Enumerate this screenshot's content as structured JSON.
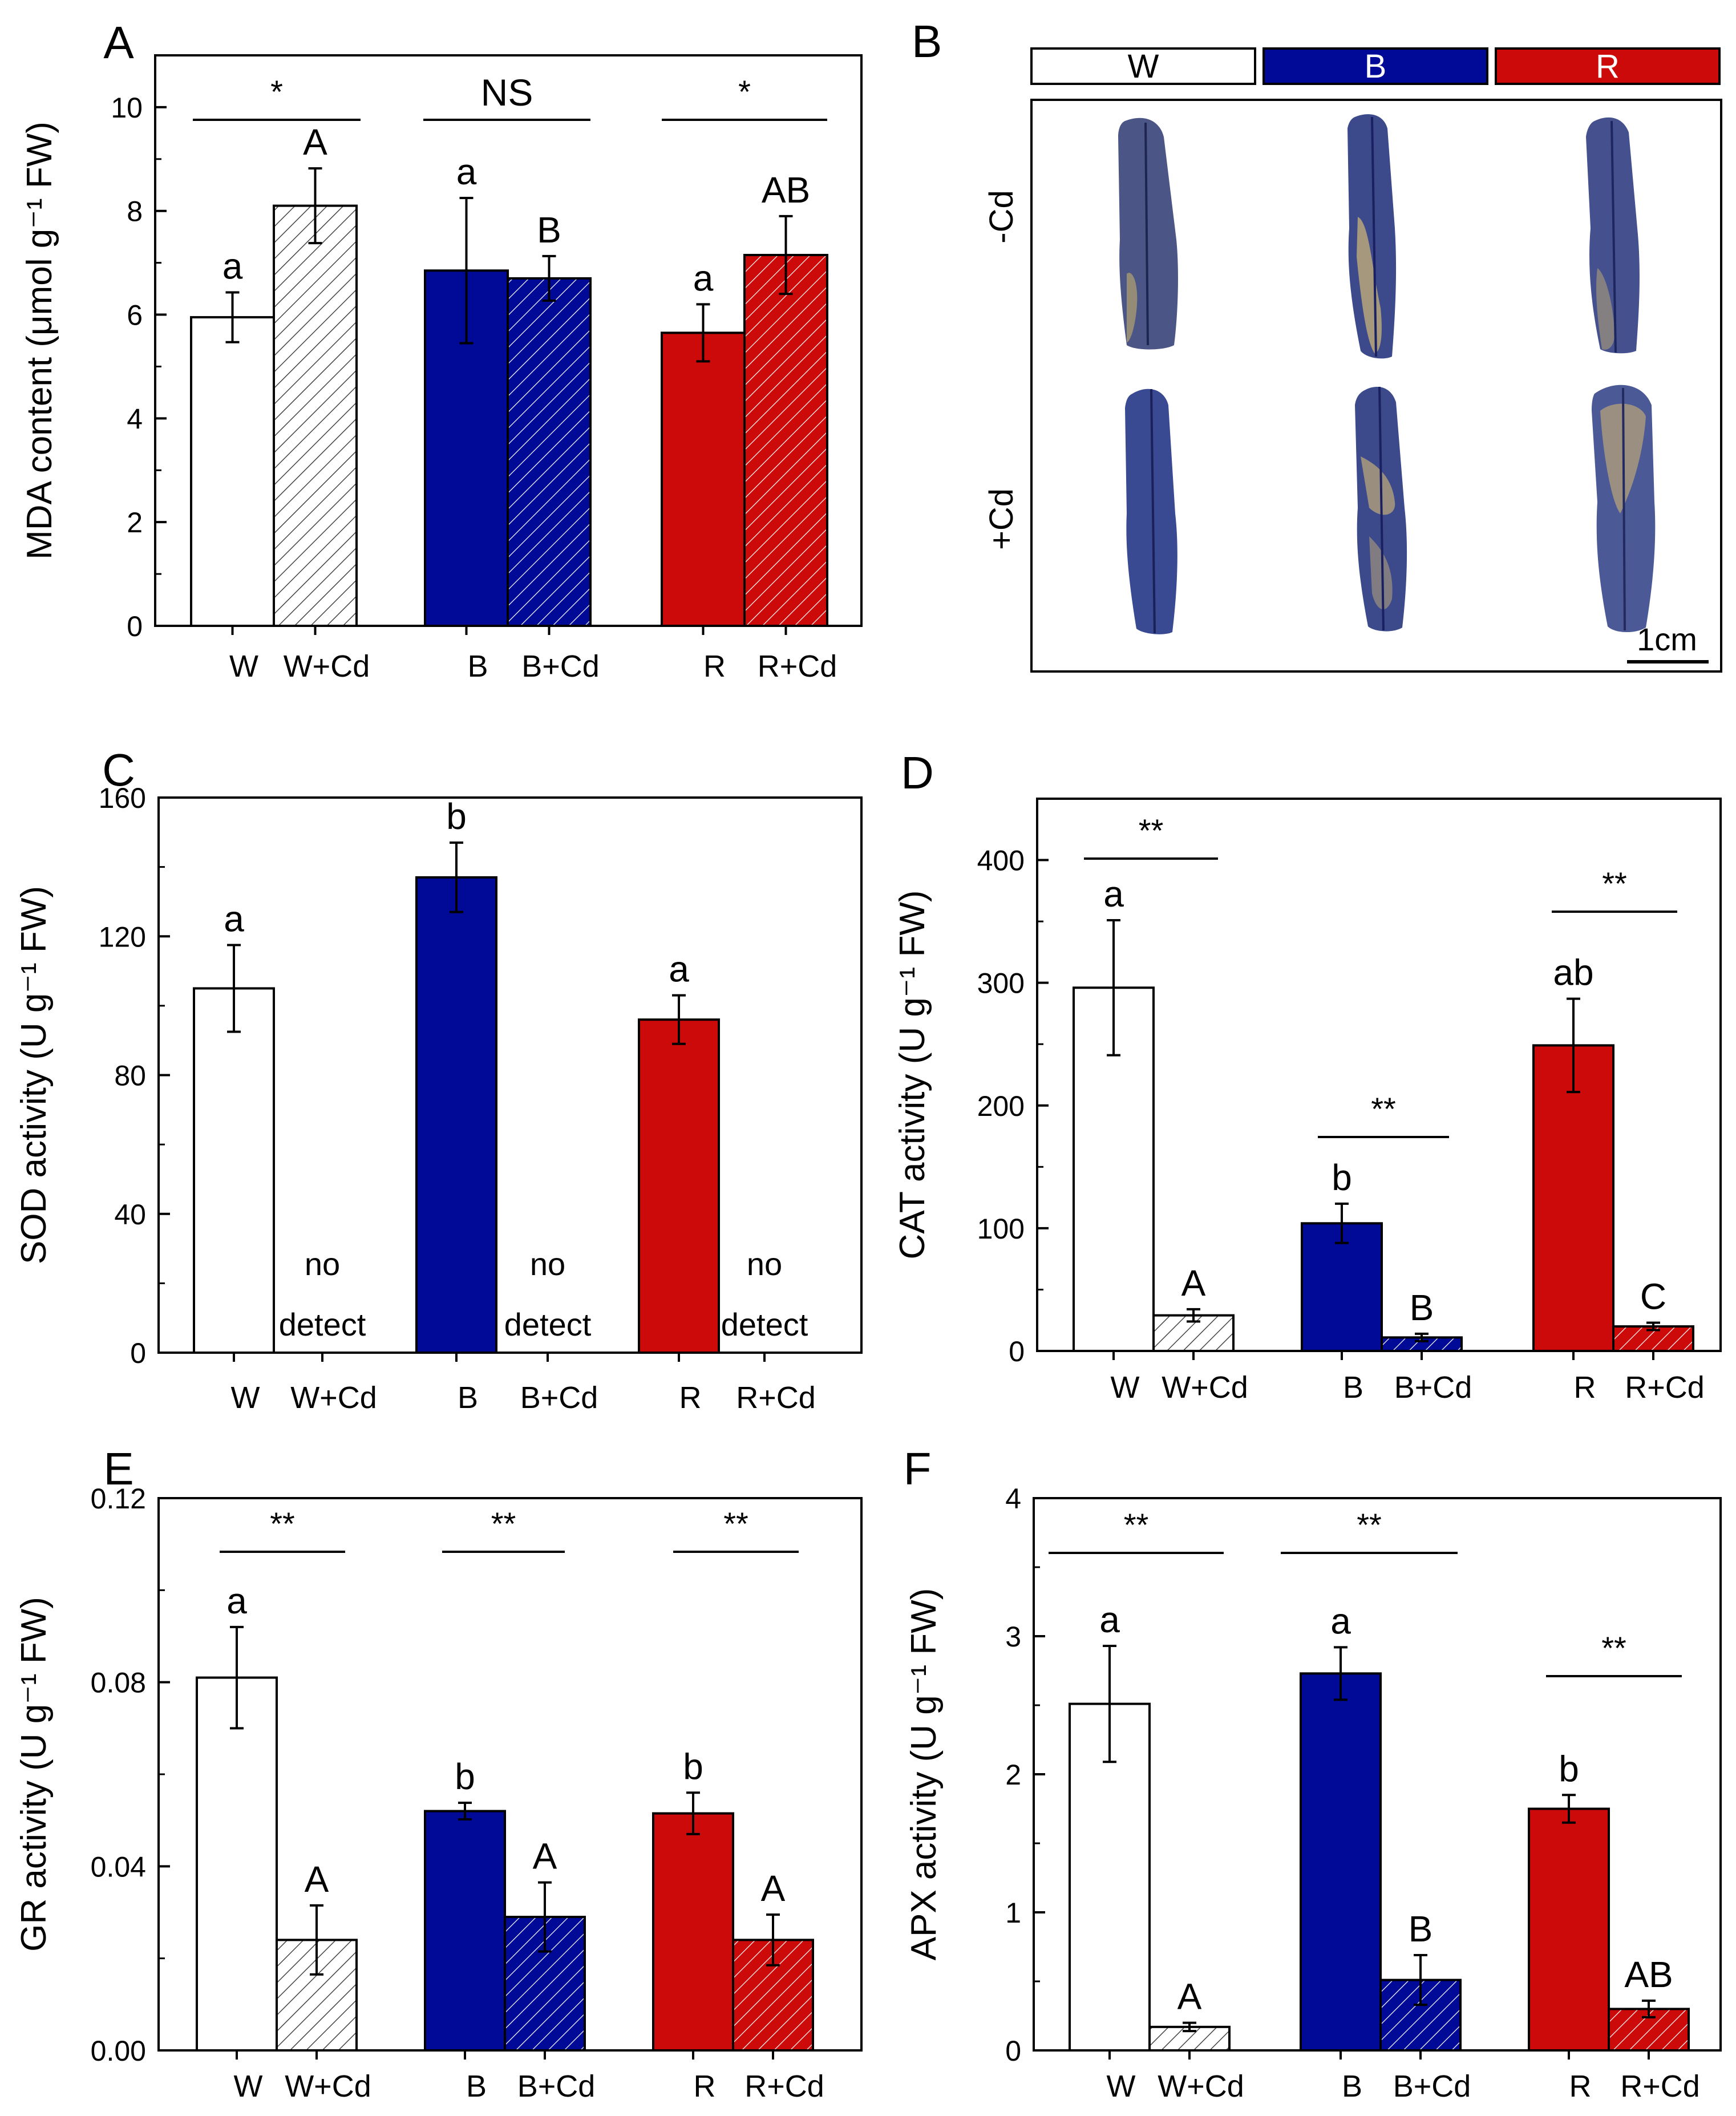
{
  "colors": {
    "white_bar": "#ffffff",
    "blue_bar": "#000a96",
    "red_bar": "#cc0a0a",
    "axis": "#000000",
    "leaf_blue": "#3c4a8c",
    "leaf_tan": "#b9a67a"
  },
  "chart_data": [
    {
      "panel": "A",
      "type": "bar",
      "ylabel": "MDA content (μmol g⁻¹ FW)",
      "ylim": [
        0,
        11
      ],
      "yticks": [
        "0",
        "2",
        "4",
        "6",
        "8",
        "10"
      ],
      "categories": [
        "W",
        "W+Cd",
        "B",
        "B+Cd",
        "R",
        "R+Cd"
      ],
      "values": [
        5.95,
        8.1,
        6.85,
        6.7,
        5.65,
        7.15
      ],
      "errors": [
        0.48,
        0.72,
        1.4,
        0.43,
        0.55,
        0.75
      ],
      "letters": [
        "a",
        "A",
        "a",
        "B",
        "a",
        "AB"
      ],
      "significance": [
        "*",
        "NS",
        "*"
      ]
    },
    {
      "panel": "C",
      "type": "bar",
      "ylabel": "SOD activity (U g⁻¹ FW)",
      "ylim": [
        0,
        160
      ],
      "yticks": [
        "0",
        "40",
        "80",
        "120",
        "160"
      ],
      "categories": [
        "W",
        "W+Cd",
        "B",
        "B+Cd",
        "R",
        "R+Cd"
      ],
      "values": [
        105,
        null,
        137,
        null,
        96,
        null
      ],
      "errors": [
        12.5,
        null,
        10,
        null,
        7,
        null
      ],
      "letters": [
        "a",
        "",
        "b",
        "",
        "a",
        ""
      ],
      "no_detect_lines": [
        "no",
        "detect"
      ]
    },
    {
      "panel": "D",
      "type": "bar",
      "ylabel": "CAT activity (U g⁻¹ FW)",
      "ylim": [
        0,
        450
      ],
      "yticks": [
        "0",
        "100",
        "200",
        "300",
        "400"
      ],
      "categories": [
        "W",
        "W+Cd",
        "B",
        "B+Cd",
        "R",
        "R+Cd"
      ],
      "values": [
        296,
        29,
        104,
        11,
        249,
        20
      ],
      "errors": [
        55,
        5,
        16,
        3,
        38,
        3
      ],
      "letters": [
        "a",
        "A",
        "b",
        "B",
        "ab",
        "C"
      ],
      "significance": [
        "**",
        "**",
        "**"
      ]
    },
    {
      "panel": "E",
      "type": "bar",
      "ylabel": "GR activity (U g⁻¹ FW)",
      "ylim": [
        0,
        0.12
      ],
      "yticks": [
        "0.00",
        "0.04",
        "0.08",
        "0.12"
      ],
      "categories": [
        "W",
        "W+Cd",
        "B",
        "B+Cd",
        "R",
        "R+Cd"
      ],
      "values": [
        0.081,
        0.024,
        0.052,
        0.029,
        0.0515,
        0.024
      ],
      "errors": [
        0.011,
        0.0075,
        0.0018,
        0.0075,
        0.0045,
        0.0055
      ],
      "letters": [
        "a",
        "A",
        "b",
        "A",
        "b",
        "A"
      ],
      "significance": [
        "**",
        "**",
        "**"
      ]
    },
    {
      "panel": "F",
      "type": "bar",
      "ylabel": "APX activity (U g⁻¹ FW)",
      "ylim": [
        0,
        4
      ],
      "yticks": [
        "0",
        "1",
        "2",
        "3",
        "4"
      ],
      "categories": [
        "W",
        "W+Cd",
        "B",
        "B+Cd",
        "R",
        "R+Cd"
      ],
      "values": [
        2.51,
        0.17,
        2.73,
        0.51,
        1.75,
        0.3
      ],
      "errors": [
        0.42,
        0.03,
        0.19,
        0.18,
        0.1,
        0.06
      ],
      "letters": [
        "a",
        "A",
        "a",
        "B",
        "b",
        "AB"
      ],
      "significance": [
        "**",
        "**",
        "**"
      ]
    }
  ],
  "panel_b": {
    "panel": "B",
    "header_labels": [
      "W",
      "B",
      "R"
    ],
    "row_labels": [
      "-Cd",
      "+Cd"
    ],
    "scale_bar": "1cm"
  }
}
